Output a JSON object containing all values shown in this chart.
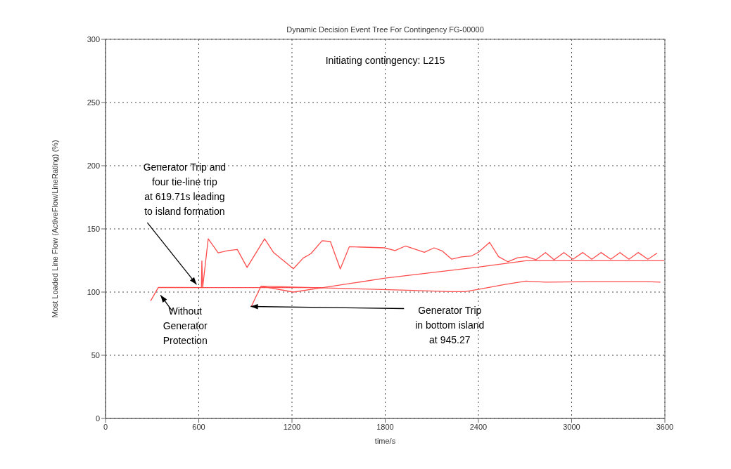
{
  "chart_data": {
    "type": "line",
    "title": "Dynamic Decision Event Tree For Contingency FG-00000",
    "xlabel": "time/s",
    "ylabel": "Most Loaded Line Flow (ActiveFlow/LineRating) (%)",
    "xlim": [
      0,
      3600
    ],
    "xticks": [
      0,
      600,
      1200,
      1800,
      2400,
      3000,
      3600
    ],
    "ylim": [
      0,
      300
    ],
    "yticks": [
      0,
      50,
      100,
      150,
      200,
      250,
      300
    ],
    "grid": true,
    "marker": "none",
    "line_style": "solid",
    "series": [
      {
        "color": "#ff4d4d",
        "x": [
          290,
          340,
          620,
          1400,
          1800,
          2400,
          2706,
          3595
        ],
        "values": [
          93,
          103.7,
          103.5,
          103.5,
          111,
          119.8,
          124.8,
          124.8
        ]
      },
      {
        "color": "#ff4d4d",
        "x": [
          617,
          620,
          625,
          661,
          725,
          789,
          848,
          911,
          1024,
          1082,
          1209,
          1272,
          1322,
          1394,
          1447,
          1511,
          1569,
          1796,
          1863,
          1930,
          1985,
          2052,
          2115,
          2169,
          2228,
          2291,
          2354,
          2400,
          2472,
          2530,
          2589,
          2652,
          2711,
          2770,
          2832,
          2887,
          2950,
          3008,
          3072,
          3130,
          3189,
          3252,
          3311,
          3369,
          3428,
          3491,
          3550
        ],
        "values": [
          103.5,
          124.7,
          103.5,
          142.2,
          131,
          132.8,
          133.7,
          119.5,
          142.2,
          131.2,
          118.5,
          126.9,
          130.4,
          140.6,
          140,
          118.3,
          135.9,
          135,
          132.8,
          136.4,
          134.2,
          131.5,
          135,
          132.4,
          126,
          127.8,
          128.5,
          131.5,
          139.3,
          128,
          124,
          127.1,
          128,
          125.6,
          131.3,
          125.6,
          131.3,
          126,
          131.3,
          126,
          131.3,
          126,
          131.3,
          126,
          131.3,
          126,
          130.8
        ]
      },
      {
        "color": "#ff4d4d",
        "x": [
          938,
          1000,
          1940,
          2224,
          2314,
          2400,
          2571,
          2706,
          2832,
          3130,
          3487,
          3572
        ],
        "values": [
          88.5,
          104.6,
          101.5,
          100.4,
          100.4,
          102.2,
          106,
          108.7,
          107.8,
          108.3,
          108.3,
          107.8
        ]
      },
      {
        "color": "#ff4d4d",
        "x": [
          1000,
          1209,
          1400
        ],
        "values": [
          104.6,
          100,
          103.5
        ]
      }
    ],
    "annotations": [
      "Initiating contingency: L215",
      {
        "text": "Generator Trip and four tie-line trip at 619.71s leading to island formation",
        "x": 586,
        "y": 106
      },
      {
        "text": "Without Generator Protection",
        "x": 345,
        "y": 103.7
      },
      {
        "text": "Generator Trip in bottom island at 945.27",
        "x": 934,
        "y": 88.6
      }
    ]
  }
}
